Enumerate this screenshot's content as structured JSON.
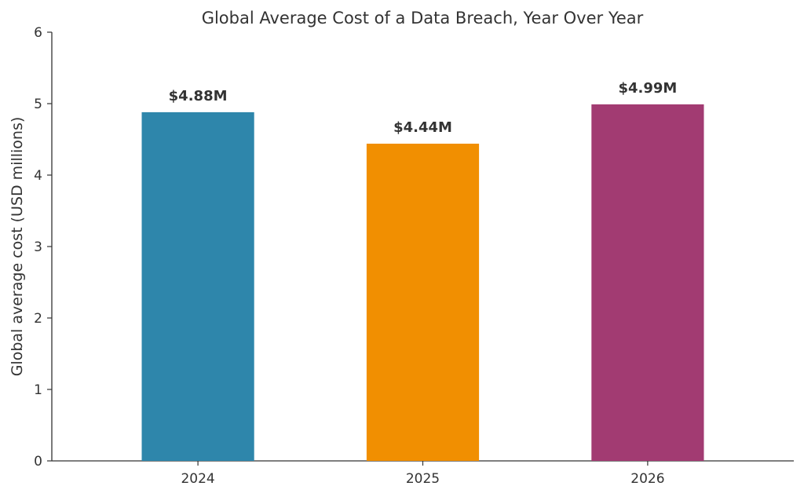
{
  "chart_data": {
    "type": "bar",
    "title": "Global Average Cost of a Data Breach, Year Over Year",
    "xlabel": "",
    "ylabel": "Global average cost (USD millions)",
    "categories": [
      "2024",
      "2025",
      "2026"
    ],
    "values": [
      4.88,
      4.44,
      4.99
    ],
    "data_labels": [
      "$4.88M",
      "$4.44M",
      "$4.99M"
    ],
    "colors": [
      "#2e86ab",
      "#f18f01",
      "#a23b72"
    ],
    "ylim": [
      0,
      6
    ],
    "yticks": [
      "0",
      "1",
      "2",
      "3",
      "4",
      "5",
      "6"
    ],
    "grid": false,
    "legend": "none"
  }
}
